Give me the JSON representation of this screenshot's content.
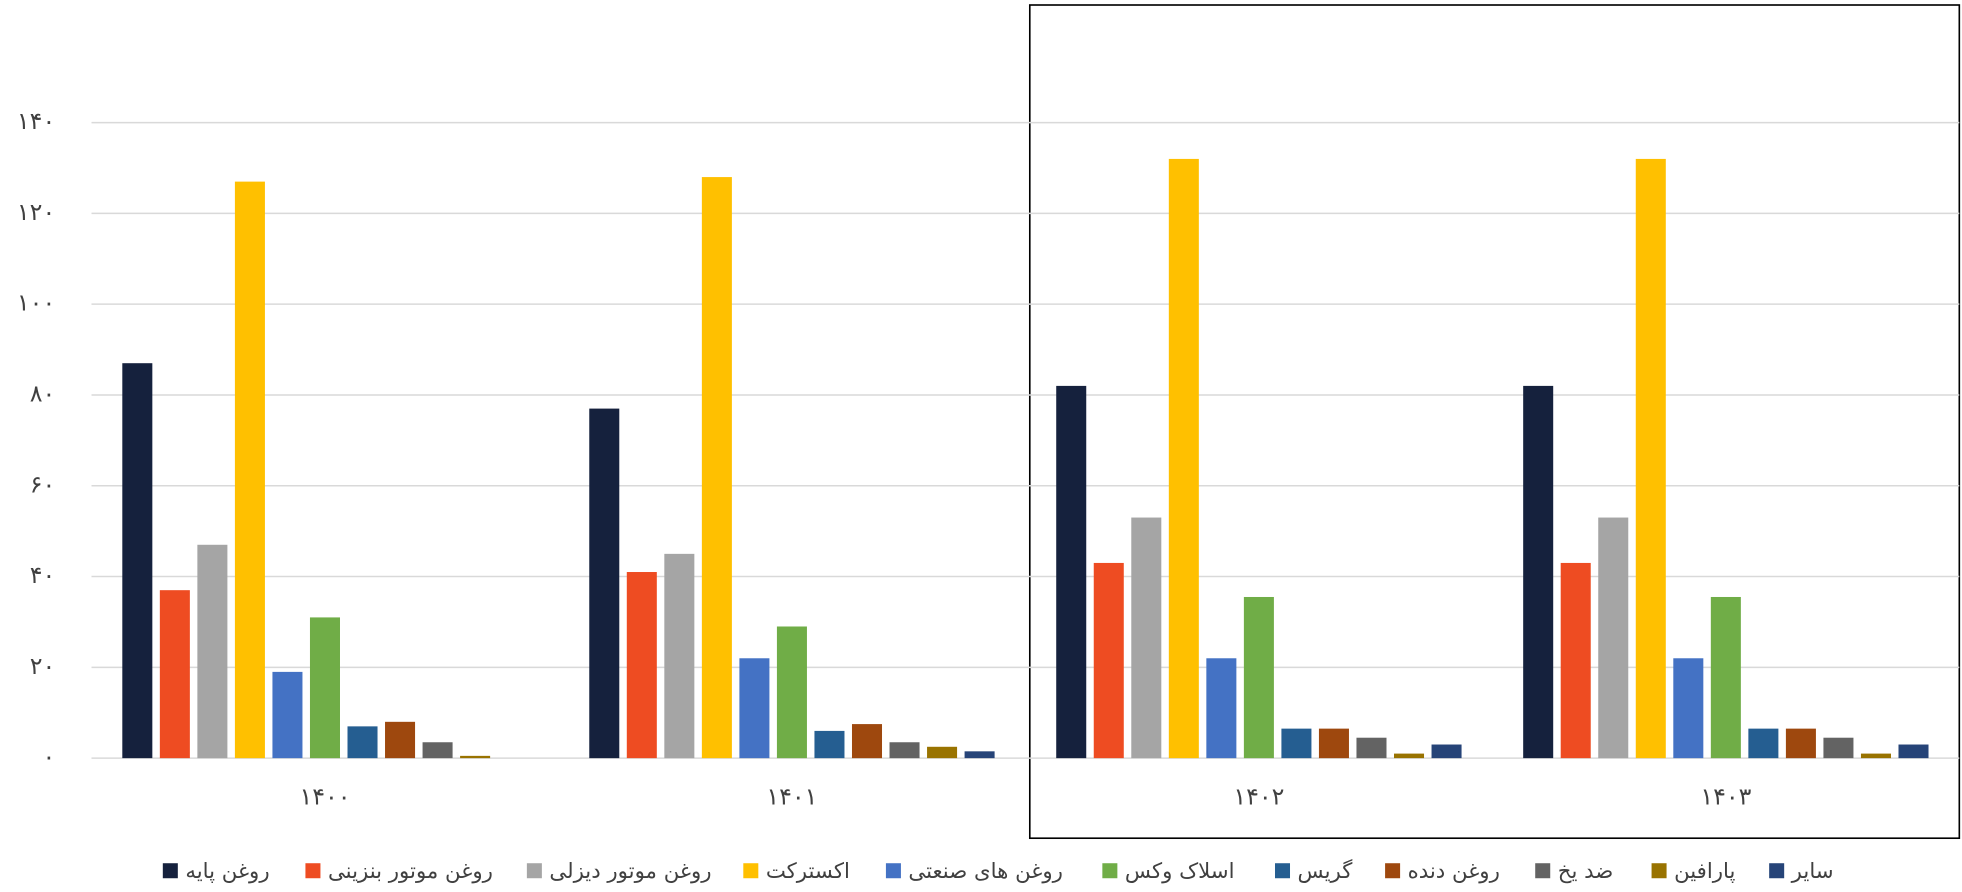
{
  "chart_data": {
    "type": "bar",
    "categories": [
      "۱۴۰۰",
      "۱۴۰۱",
      "۱۴۰۲",
      "۱۴۰۳"
    ],
    "series": [
      {
        "name": "روغن پایه",
        "color": "#15213d",
        "values": [
          87,
          77,
          82,
          82
        ]
      },
      {
        "name": "روغن موتور بنزینی",
        "color": "#ee4c22",
        "values": [
          37,
          41,
          43,
          43
        ]
      },
      {
        "name": "روغن موتور دیزلی",
        "color": "#a5a5a5",
        "values": [
          47,
          45,
          53,
          53
        ]
      },
      {
        "name": "اکسترکت",
        "color": "#ffc000",
        "values": [
          127,
          128,
          132,
          132
        ]
      },
      {
        "name": "روغن های صنعتی",
        "color": "#4472c4",
        "values": [
          19,
          22,
          22,
          22
        ]
      },
      {
        "name": "اسلاک وکس",
        "color": "#70ad47",
        "values": [
          31,
          29,
          35.5,
          35.5
        ]
      },
      {
        "name": "گریس",
        "color": "#255e91",
        "values": [
          7,
          6,
          6.5,
          6.5
        ]
      },
      {
        "name": "روغن دنده",
        "color": "#9e480e",
        "values": [
          8,
          7.5,
          6.5,
          6.5
        ]
      },
      {
        "name": "ضد یخ",
        "color": "#636363",
        "values": [
          3.5,
          3.5,
          4.5,
          4.5
        ]
      },
      {
        "name": "پارافین",
        "color": "#997300",
        "values": [
          0.5,
          2.5,
          1,
          1
        ]
      },
      {
        "name": "سایر",
        "color": "#264478",
        "values": [
          0,
          1.5,
          3,
          3
        ]
      }
    ],
    "ylim": [
      0,
      140
    ],
    "yticks": [
      {
        "value": 0,
        "label": "۰"
      },
      {
        "value": 20,
        "label": "۲۰"
      },
      {
        "value": 40,
        "label": "۴۰"
      },
      {
        "value": 60,
        "label": "۶۰"
      },
      {
        "value": 80,
        "label": "۸۰"
      },
      {
        "value": 100,
        "label": "۱۰۰"
      },
      {
        "value": 120,
        "label": "۱۲۰"
      },
      {
        "value": 140,
        "label": "۱۴۰"
      }
    ],
    "grid": true,
    "legend": "bottom"
  }
}
